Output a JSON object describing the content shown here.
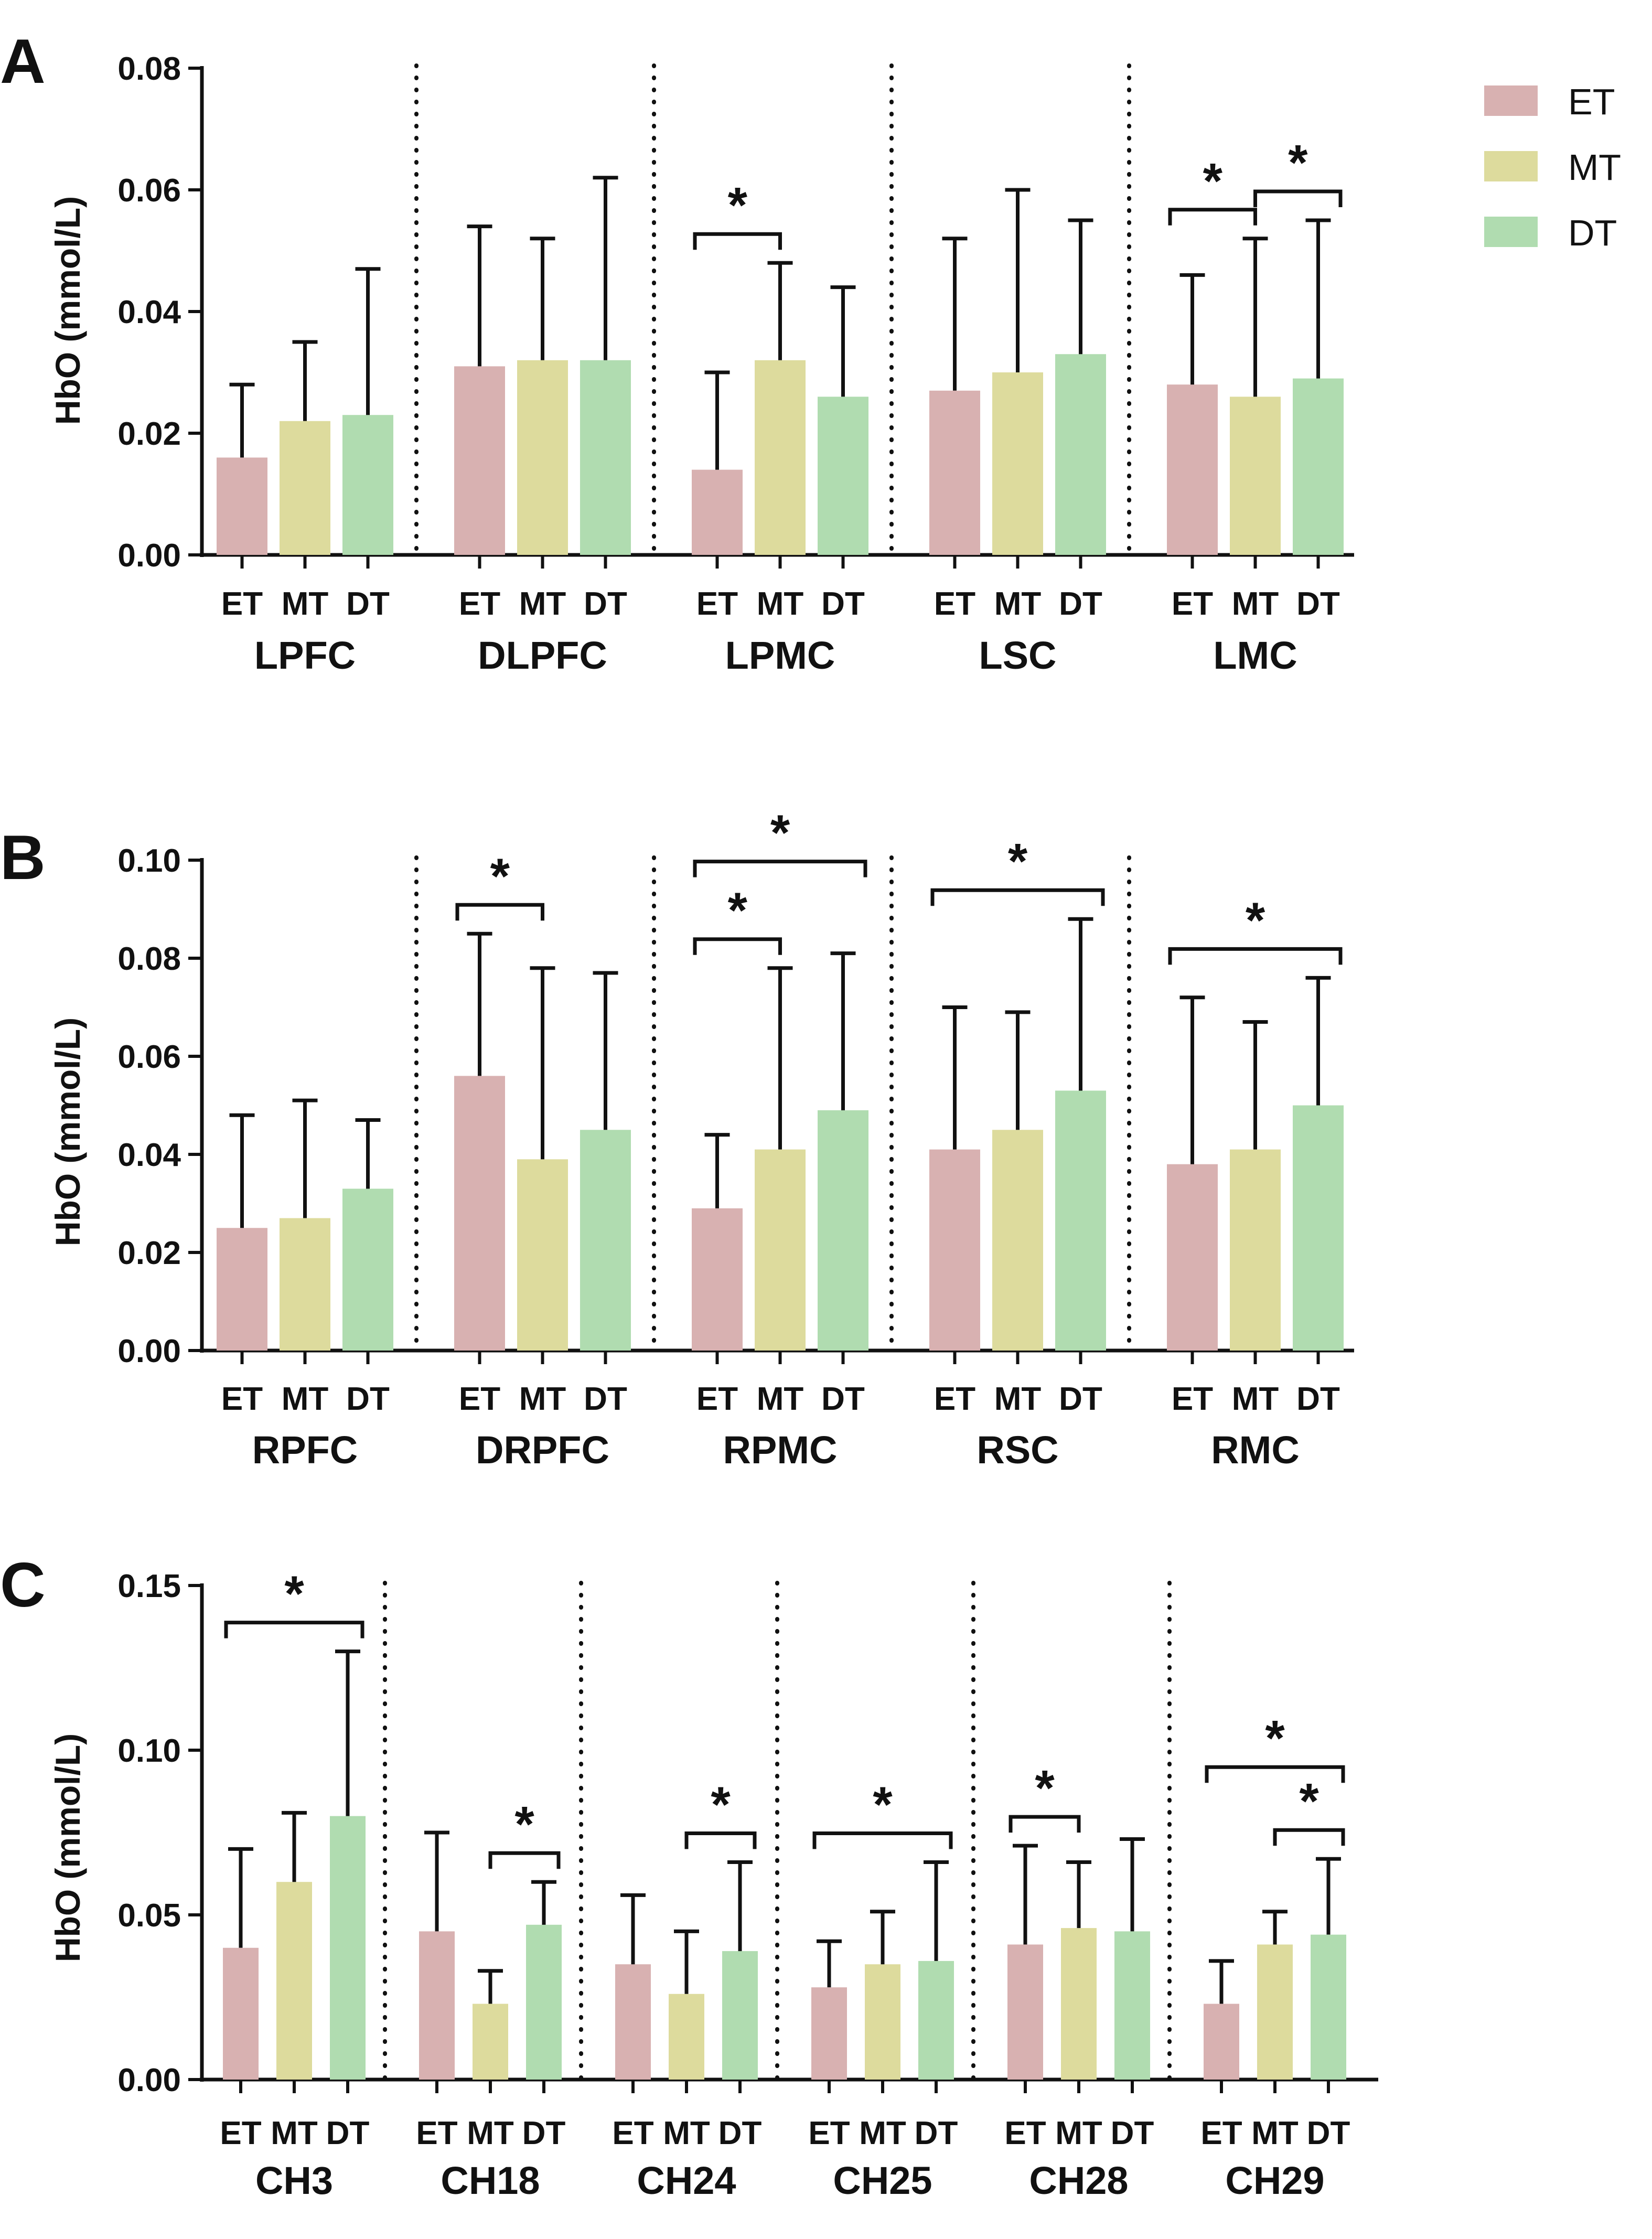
{
  "legend": [
    {
      "label": "ET",
      "color": "#d8b1b1"
    },
    {
      "label": "MT",
      "color": "#dddb9d"
    },
    {
      "label": "DT",
      "color": "#b0dcb0"
    }
  ],
  "chart_data": [
    {
      "panel": "A",
      "type": "bar",
      "ylabel": "HbO (mmol/L)",
      "ylim": [
        0,
        0.08
      ],
      "yticks": [
        "0.00",
        "0.02",
        "0.04",
        "0.06",
        "0.08"
      ],
      "categories": [
        "ET",
        "MT",
        "DT"
      ],
      "groups": [
        {
          "name": "LPFC",
          "values": [
            0.016,
            0.022,
            0.023
          ],
          "errors": [
            0.028,
            0.035,
            0.047
          ],
          "sig": []
        },
        {
          "name": "DLPFC",
          "values": [
            0.031,
            0.032,
            0.032
          ],
          "errors": [
            0.054,
            0.052,
            0.062
          ],
          "sig": []
        },
        {
          "name": "LPMC",
          "values": [
            0.014,
            0.032,
            0.026
          ],
          "errors": [
            0.03,
            0.048,
            0.044
          ],
          "sig": [
            {
              "from": 0,
              "to": 1,
              "label": "*"
            }
          ]
        },
        {
          "name": "LSC",
          "values": [
            0.027,
            0.03,
            0.033
          ],
          "errors": [
            0.052,
            0.06,
            0.055
          ],
          "sig": []
        },
        {
          "name": "LMC",
          "values": [
            0.028,
            0.026,
            0.029
          ],
          "errors": [
            0.046,
            0.052,
            0.055
          ],
          "sig": [
            {
              "from": 0,
              "to": 1,
              "label": "*"
            },
            {
              "from": 1,
              "to": 2,
              "label": "*"
            }
          ]
        }
      ]
    },
    {
      "panel": "B",
      "type": "bar",
      "ylabel": "HbO (mmol/L)",
      "ylim": [
        0,
        0.1
      ],
      "yticks": [
        "0.00",
        "0.02",
        "0.04",
        "0.06",
        "0.08",
        "0.10"
      ],
      "categories": [
        "ET",
        "MT",
        "DT"
      ],
      "groups": [
        {
          "name": "RPFC",
          "values": [
            0.025,
            0.027,
            0.033
          ],
          "errors": [
            0.048,
            0.051,
            0.047
          ],
          "sig": []
        },
        {
          "name": "DRPFC",
          "values": [
            0.056,
            0.039,
            0.045
          ],
          "errors": [
            0.085,
            0.078,
            0.077
          ],
          "sig": [
            {
              "from": 0,
              "to": 1,
              "label": "*"
            }
          ]
        },
        {
          "name": "RPMC",
          "values": [
            0.029,
            0.041,
            0.049
          ],
          "errors": [
            0.044,
            0.078,
            0.081
          ],
          "sig": [
            {
              "from": 0,
              "to": 1,
              "label": "*"
            },
            {
              "from": 0,
              "to": 2,
              "label": "*"
            }
          ]
        },
        {
          "name": "RSC",
          "values": [
            0.041,
            0.045,
            0.053
          ],
          "errors": [
            0.07,
            0.069,
            0.088
          ],
          "sig": [
            {
              "from": 0,
              "to": 2,
              "label": "*"
            }
          ]
        },
        {
          "name": "RMC",
          "values": [
            0.038,
            0.041,
            0.05
          ],
          "errors": [
            0.072,
            0.067,
            0.076
          ],
          "sig": [
            {
              "from": 0,
              "to": 2,
              "label": "*"
            }
          ]
        }
      ]
    },
    {
      "panel": "C",
      "type": "bar",
      "ylabel": "HbO (mmol/L)",
      "ylim": [
        0,
        0.15
      ],
      "yticks": [
        "0.00",
        "0.05",
        "0.10",
        "0.15"
      ],
      "categories": [
        "ET",
        "MT",
        "DT"
      ],
      "groups": [
        {
          "name": "CH3",
          "values": [
            0.04,
            0.06,
            0.08
          ],
          "errors": [
            0.07,
            0.081,
            0.13
          ],
          "sig": [
            {
              "from": 0,
              "to": 2,
              "label": "*"
            }
          ]
        },
        {
          "name": "CH18",
          "values": [
            0.045,
            0.023,
            0.047
          ],
          "errors": [
            0.075,
            0.033,
            0.06
          ],
          "sig": [
            {
              "from": 1,
              "to": 2,
              "label": "*"
            }
          ]
        },
        {
          "name": "CH24",
          "values": [
            0.035,
            0.026,
            0.039
          ],
          "errors": [
            0.056,
            0.045,
            0.066
          ],
          "sig": [
            {
              "from": 1,
              "to": 2,
              "label": "*"
            }
          ]
        },
        {
          "name": "CH25",
          "values": [
            0.028,
            0.035,
            0.036
          ],
          "errors": [
            0.042,
            0.051,
            0.066
          ],
          "sig": [
            {
              "from": 0,
              "to": 2,
              "label": "*"
            }
          ]
        },
        {
          "name": "CH28",
          "values": [
            0.041,
            0.046,
            0.045
          ],
          "errors": [
            0.071,
            0.066,
            0.073
          ],
          "sig": [
            {
              "from": 0,
              "to": 1,
              "label": "*"
            }
          ]
        },
        {
          "name": "CH29",
          "values": [
            0.023,
            0.041,
            0.044
          ],
          "errors": [
            0.036,
            0.051,
            0.067
          ],
          "sig": [
            {
              "from": 0,
              "to": 2,
              "label": "*"
            },
            {
              "from": 1,
              "to": 2,
              "label": "*"
            }
          ]
        }
      ]
    }
  ]
}
